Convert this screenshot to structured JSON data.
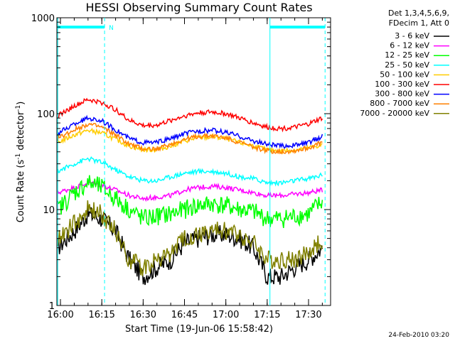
{
  "chart_data": {
    "type": "line",
    "title": "HESSI Observing Summary Count Rates",
    "xlabel": "Start Time (19-Jun-06 15:58:42)",
    "ylabel_main": "Count Rate (s",
    "ylabel_exp1": "-1",
    "ylabel_mid": " detector",
    "ylabel_exp2": "-1",
    "ylabel_end": ")",
    "y_scale": "log",
    "ylim": [
      1,
      1000
    ],
    "xlim": [
      "15:58:42",
      "17:38:00"
    ],
    "x_ticks": [
      "16:00",
      "16:15",
      "16:30",
      "16:45",
      "17:00",
      "17:15",
      "17:30"
    ],
    "y_ticks": [
      "1",
      "10",
      "100",
      "1000"
    ],
    "legend_header": [
      "Det 1,3,4,5,6,9,",
      "FDecim 1, Att 0"
    ],
    "legend_position": "right",
    "series": [
      {
        "name": "3 - 6 keV",
        "color": "#000000",
        "x": [
          "15:59",
          "16:05",
          "16:10",
          "16:15",
          "16:20",
          "16:25",
          "16:30",
          "16:35",
          "16:40",
          "16:45",
          "16:50",
          "16:55",
          "17:00",
          "17:05",
          "17:10",
          "17:15",
          "17:20",
          "17:25",
          "17:30",
          "17:35"
        ],
        "y": [
          4,
          6,
          9,
          8,
          6,
          3,
          2,
          2.5,
          3,
          4.5,
          5,
          5.5,
          5.5,
          5,
          4,
          2,
          2,
          2.5,
          3,
          4
        ]
      },
      {
        "name": "6 - 12 keV",
        "color": "#ff00ff",
        "x": [
          "15:59",
          "16:05",
          "16:10",
          "16:15",
          "16:20",
          "16:25",
          "16:30",
          "16:35",
          "16:40",
          "16:45",
          "16:50",
          "16:55",
          "17:00",
          "17:05",
          "17:10",
          "17:15",
          "17:20",
          "17:25",
          "17:30",
          "17:35"
        ],
        "y": [
          15,
          17,
          19,
          18,
          16,
          14,
          13,
          13.5,
          14,
          16,
          17,
          17.5,
          17,
          16,
          15,
          14,
          14,
          14.5,
          15,
          16
        ]
      },
      {
        "name": "12 - 25 keV",
        "color": "#00ff00",
        "x": [
          "15:59",
          "16:05",
          "16:10",
          "16:15",
          "16:20",
          "16:25",
          "16:30",
          "16:35",
          "16:40",
          "16:45",
          "16:50",
          "16:55",
          "17:00",
          "17:05",
          "17:10",
          "17:15",
          "17:20",
          "17:25",
          "17:30",
          "17:35"
        ],
        "y": [
          10,
          15,
          19,
          17,
          13,
          10,
          8,
          8.5,
          9,
          10,
          11,
          11.5,
          11,
          10,
          9.5,
          8,
          8,
          8.5,
          9,
          12
        ]
      },
      {
        "name": "25 - 50 keV",
        "color": "#00ffff",
        "x": [
          "15:59",
          "16:05",
          "16:10",
          "16:15",
          "16:20",
          "16:25",
          "16:30",
          "16:35",
          "16:40",
          "16:45",
          "16:50",
          "16:55",
          "17:00",
          "17:05",
          "17:10",
          "17:15",
          "17:20",
          "17:25",
          "17:30",
          "17:35"
        ],
        "y": [
          25,
          30,
          34,
          31,
          26,
          22,
          20,
          20,
          22,
          24,
          25,
          25,
          24,
          22,
          21,
          19,
          19,
          20,
          21,
          23
        ]
      },
      {
        "name": "50 - 100 keV",
        "color": "#ffcc00",
        "x": [
          "15:59",
          "16:05",
          "16:10",
          "16:15",
          "16:20",
          "16:25",
          "16:30",
          "16:35",
          "16:40",
          "16:45",
          "16:50",
          "16:55",
          "17:00",
          "17:05",
          "17:10",
          "17:15",
          "17:20",
          "17:25",
          "17:30",
          "17:35"
        ],
        "y": [
          50,
          60,
          67,
          63,
          54,
          46,
          42,
          42,
          46,
          52,
          56,
          57,
          55,
          50,
          46,
          42,
          41,
          42,
          44,
          47
        ]
      },
      {
        "name": "100 - 300 keV",
        "color": "#ff0000",
        "x": [
          "15:59",
          "16:05",
          "16:10",
          "16:15",
          "16:20",
          "16:25",
          "16:30",
          "16:35",
          "16:40",
          "16:45",
          "16:50",
          "16:55",
          "17:00",
          "17:05",
          "17:10",
          "17:15",
          "17:20",
          "17:25",
          "17:30",
          "17:35"
        ],
        "y": [
          95,
          120,
          140,
          130,
          110,
          85,
          75,
          76,
          85,
          95,
          102,
          104,
          100,
          90,
          80,
          72,
          70,
          72,
          78,
          90
        ]
      },
      {
        "name": "300 - 800 keV",
        "color": "#0000ff",
        "x": [
          "15:59",
          "16:05",
          "16:10",
          "16:15",
          "16:20",
          "16:25",
          "16:30",
          "16:35",
          "16:40",
          "16:45",
          "16:50",
          "16:55",
          "17:00",
          "17:05",
          "17:10",
          "17:15",
          "17:20",
          "17:25",
          "17:30",
          "17:35"
        ],
        "y": [
          62,
          78,
          90,
          84,
          68,
          55,
          50,
          50,
          55,
          62,
          66,
          67,
          64,
          58,
          52,
          48,
          46,
          47,
          50,
          58
        ]
      },
      {
        "name": "800 - 7000 keV",
        "color": "#ff8000",
        "x": [
          "15:59",
          "16:05",
          "16:10",
          "16:15",
          "16:20",
          "16:25",
          "16:30",
          "16:35",
          "16:40",
          "16:45",
          "16:50",
          "16:55",
          "17:00",
          "17:05",
          "17:10",
          "17:15",
          "17:20",
          "17:25",
          "17:30",
          "17:35"
        ],
        "y": [
          55,
          68,
          78,
          72,
          60,
          48,
          43,
          43,
          48,
          54,
          58,
          59,
          56,
          50,
          45,
          41,
          40,
          41,
          44,
          50
        ]
      },
      {
        "name": "7000 - 20000 keV",
        "color": "#808000",
        "x": [
          "15:59",
          "16:05",
          "16:10",
          "16:15",
          "16:20",
          "16:25",
          "16:30",
          "16:35",
          "16:40",
          "16:45",
          "16:50",
          "16:55",
          "17:00",
          "17:05",
          "17:10",
          "17:15",
          "17:20",
          "17:25",
          "17:30",
          "17:35"
        ],
        "y": [
          5,
          7,
          10,
          9,
          6,
          3,
          2.5,
          3,
          3.5,
          5,
          5.5,
          6,
          6,
          5.5,
          4.5,
          3,
          3,
          3,
          3.5,
          5
        ]
      }
    ],
    "annotations": {
      "flag_label": "N",
      "flag_color": "#00ffff",
      "flag_intervals": [
        [
          "15:59",
          "16:16"
        ],
        [
          "17:16",
          "17:36"
        ]
      ],
      "flag_y_value": 800,
      "dashed_lines": [
        "16:16",
        "17:36"
      ],
      "solid_lines": [
        "15:59",
        "17:16"
      ]
    }
  },
  "timestamp": "24-Feb-2010 03:20"
}
